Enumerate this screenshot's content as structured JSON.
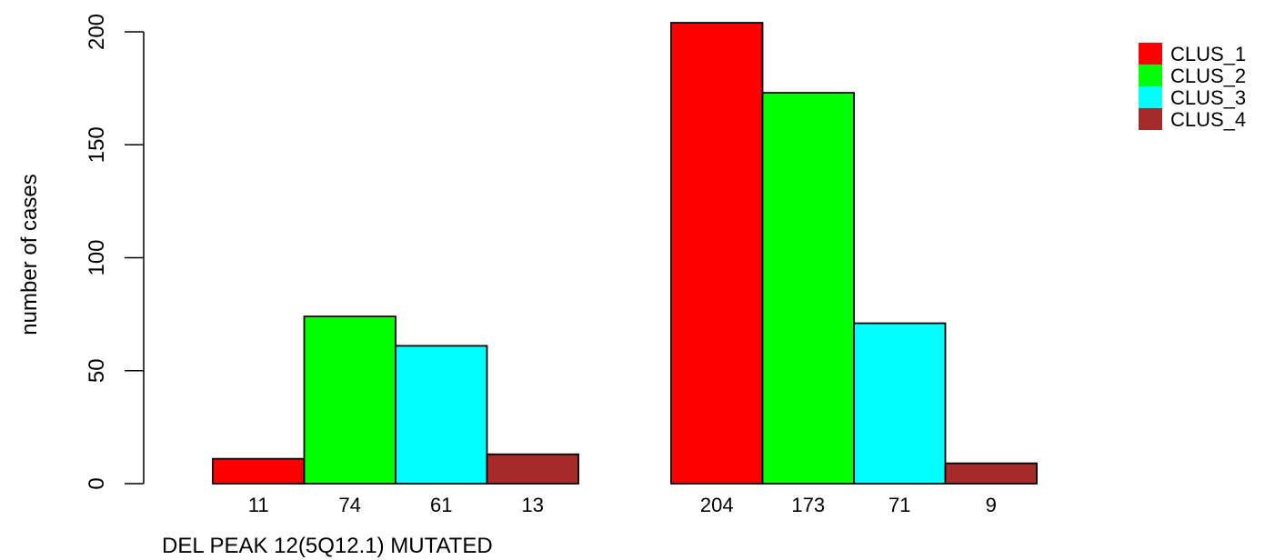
{
  "chart_data": {
    "type": "bar",
    "xlabel": "DEL PEAK 12(5Q12.1) MUTATED",
    "ylabel": "number of cases",
    "ylim": [
      0,
      200
    ],
    "yticks": [
      "0",
      "50",
      "100",
      "150",
      "200"
    ],
    "groups": [
      {
        "values": [
          11,
          74,
          61,
          13
        ],
        "labels": [
          "11",
          "74",
          "61",
          "13"
        ]
      },
      {
        "values": [
          204,
          173,
          71,
          9
        ],
        "labels": [
          "204",
          "173",
          "71",
          "9"
        ]
      }
    ],
    "series": [
      {
        "name": "CLUS_1",
        "color": "#ff0000"
      },
      {
        "name": "CLUS_2",
        "color": "#00ff00"
      },
      {
        "name": "CLUS_3",
        "color": "#00ffff"
      },
      {
        "name": "CLUS_4",
        "color": "#a52a2a"
      }
    ],
    "legend_position": "top-right",
    "grid": false
  }
}
